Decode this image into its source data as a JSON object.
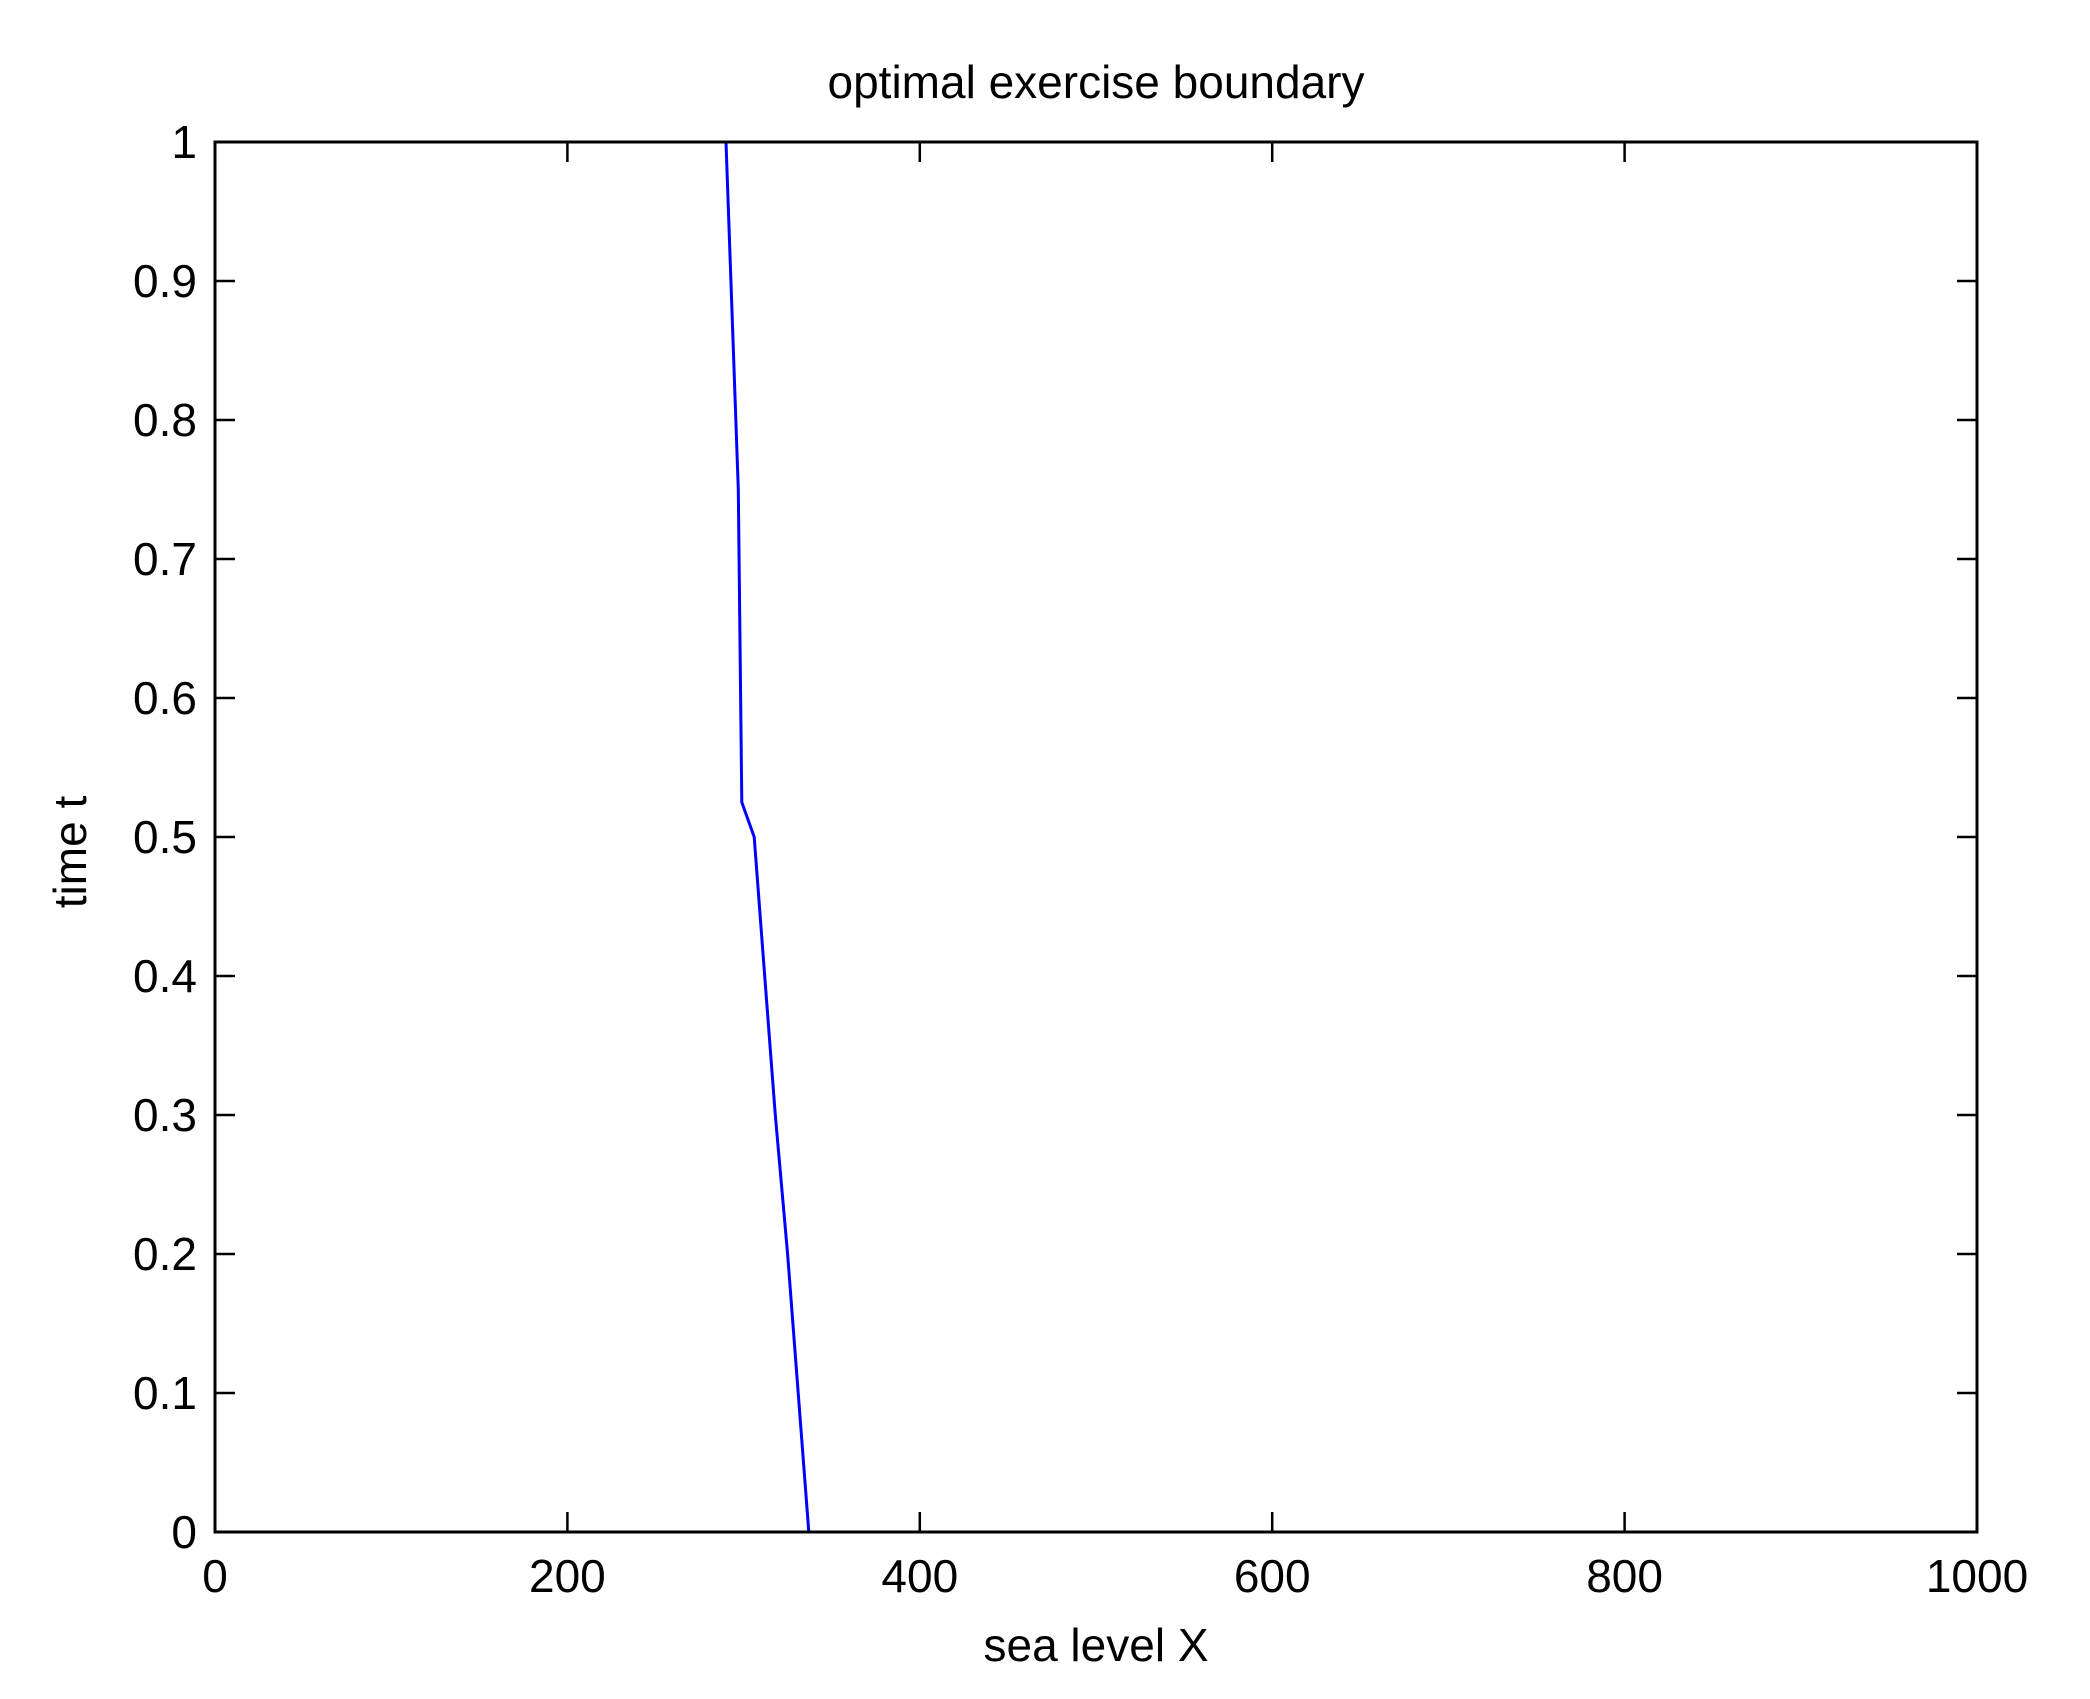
{
  "chart_data": {
    "type": "line",
    "title": "optimal exercise boundary",
    "xlabel": "sea level X",
    "ylabel": "time t",
    "xlim": [
      0,
      1000
    ],
    "ylim": [
      0,
      1
    ],
    "xticks": [
      0,
      200,
      400,
      600,
      800,
      1000
    ],
    "xtick_labels": [
      "0",
      "200",
      "400",
      "600",
      "800",
      "1000"
    ],
    "yticks": [
      0,
      0.1,
      0.2,
      0.3,
      0.4,
      0.5,
      0.6,
      0.7,
      0.8,
      0.9,
      1
    ],
    "ytick_labels": [
      "0",
      "0.1",
      "0.2",
      "0.3",
      "0.4",
      "0.5",
      "0.6",
      "0.7",
      "0.8",
      "0.9",
      "1"
    ],
    "grid": false,
    "box": true,
    "series": [
      {
        "color": "#0000ff",
        "x": [
          337,
          331,
          325,
          318,
          312,
          306,
          299,
          297,
          290
        ],
        "y": [
          0.0,
          0.1,
          0.2,
          0.3,
          0.4,
          0.5,
          0.525,
          0.75,
          1.0
        ]
      }
    ]
  }
}
